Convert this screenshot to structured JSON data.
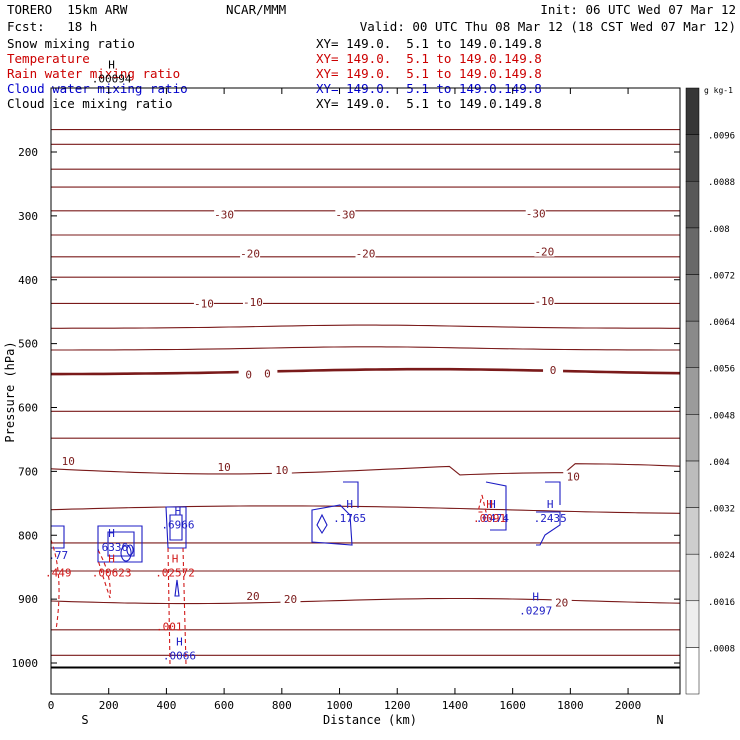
{
  "header": {
    "model": "TORERO  15km ARW",
    "center": "NCAR/MMM",
    "init": "Init: 06 UTC Wed 07 Mar 12",
    "fcst": "Fcst:   18 h",
    "valid": "Valid: 00 UTC Thu 08 Mar 12 (18 CST Wed 07 Mar 12)"
  },
  "fields": [
    {
      "label": "Snow mixing ratio",
      "xy": "XY= 149.0.  5.1 to 149.0.149.8",
      "color": "#000000"
    },
    {
      "label": "Temperature",
      "xy": "XY= 149.0.  5.1 to 149.0.149.8",
      "color": "#cc0000"
    },
    {
      "label": "Rain water mixing ratio",
      "xy": "XY= 149.0.  5.1 to 149.0.149.8",
      "color": "#cc0000"
    },
    {
      "label": "Cloud water mixing ratio",
      "xy": "XY= 149.0.  5.1 to 149.0.149.8",
      "color": "#0000cc"
    },
    {
      "label": "Cloud ice mixing ratio",
      "xy": "XY= 149.0.  5.1 to 149.0.149.8",
      "color": "#000000"
    }
  ],
  "chart_data": {
    "type": "cross-section",
    "xlabel": "Distance (km)",
    "ylabel": "Pressure (hPa)",
    "xlim": [
      0,
      2180
    ],
    "ylim": [
      1045,
      90
    ],
    "x_ticks": [
      0,
      200,
      400,
      600,
      800,
      1000,
      1200,
      1400,
      1600,
      1800,
      2000
    ],
    "x_tick_labels": [
      "0",
      "200",
      "400",
      "600",
      "800",
      "1000",
      "1200",
      "1400",
      "1600",
      "1800",
      "2000"
    ],
    "y_ticks": [
      200,
      300,
      400,
      500,
      600,
      700,
      800,
      900,
      1000
    ],
    "y_tick_labels": [
      "200",
      "300",
      "400",
      "500",
      "600",
      "700",
      "800",
      "900",
      "1000"
    ],
    "endpoints": {
      "left": "S",
      "right": "N"
    },
    "surface_pressure_hPa": 1007,
    "temperature_isotherms_C": [
      -30,
      -20,
      -10,
      0,
      10,
      20
    ],
    "temperature_labels": [
      {
        "text": "-30",
        "x": 600,
        "p": 298
      },
      {
        "text": "-30",
        "x": 1020,
        "p": 298
      },
      {
        "text": "-30",
        "x": 1680,
        "p": 296
      },
      {
        "text": "-20",
        "x": 690,
        "p": 359
      },
      {
        "text": "-20",
        "x": 1090,
        "p": 359
      },
      {
        "text": "-20",
        "x": 1710,
        "p": 356
      },
      {
        "text": "-10",
        "x": 530,
        "p": 437
      },
      {
        "text": "-10",
        "x": 700,
        "p": 435
      },
      {
        "text": "-10",
        "x": 1710,
        "p": 433
      },
      {
        "text": "0",
        "x": 685,
        "p": 548
      },
      {
        "text": "0",
        "x": 750,
        "p": 547
      },
      {
        "text": "0",
        "x": 1740,
        "p": 541
      },
      {
        "text": "10",
        "x": 60,
        "p": 684
      },
      {
        "text": "10",
        "x": 600,
        "p": 693
      },
      {
        "text": "10",
        "x": 800,
        "p": 698
      },
      {
        "text": "10",
        "x": 1810,
        "p": 708
      },
      {
        "text": "20",
        "x": 700,
        "p": 895
      },
      {
        "text": "20",
        "x": 830,
        "p": 900
      },
      {
        "text": "20",
        "x": 1770,
        "p": 905
      }
    ],
    "maxima_labels": [
      {
        "field": "Cloud ice",
        "mark": "H",
        "value": ".00094",
        "x": 210,
        "p": 82
      },
      {
        "field": "Cloud water",
        "mark": "H",
        "value": ".6336",
        "x": 210,
        "p": 815
      },
      {
        "field": "Cloud water",
        "mark": "H",
        "value": ".6966",
        "x": 440,
        "p": 780
      },
      {
        "field": "Cloud water",
        "mark": "H",
        "value": ".1765",
        "x": 1035,
        "p": 770
      },
      {
        "field": "Cloud water",
        "mark": "H",
        "value": ".0474",
        "x": 1530,
        "p": 770
      },
      {
        "field": "Cloud water",
        "mark": "H",
        "value": ".2435",
        "x": 1730,
        "p": 770
      },
      {
        "field": "Cloud water",
        "mark": "H",
        "value": ".0297",
        "x": 1680,
        "p": 915
      },
      {
        "field": "Cloud water",
        "mark": "H",
        "value": ".0066",
        "x": 445,
        "p": 985
      },
      {
        "field": "Cloud water",
        "mark": "",
        "value": ".77",
        "x": 25,
        "p": 828
      },
      {
        "field": "Rain water",
        "mark": "H",
        "value": ".00623",
        "x": 210,
        "p": 855
      },
      {
        "field": "Rain water",
        "mark": "H",
        "value": ".02572",
        "x": 430,
        "p": 855
      },
      {
        "field": "Rain water",
        "mark": "H",
        "value": ".0091",
        "x": 1520,
        "p": 770
      },
      {
        "field": "Rain water",
        "mark": "",
        "value": ".001",
        "x": 410,
        "p": 940
      },
      {
        "field": "Rain water",
        "mark": "",
        "value": ".449",
        "x": 25,
        "p": 855
      }
    ],
    "colorbar": {
      "title": "g kg-1",
      "levels": [
        ".0008",
        ".0016",
        ".0024",
        ".0032",
        ".004",
        ".0048",
        ".0056",
        ".0064",
        ".0072",
        ".008",
        ".0088",
        ".0096"
      ]
    }
  },
  "colors": {
    "temperature": "#7a1a1a",
    "rain": "#d11a1a",
    "cloud_water": "#1c1cc4",
    "text": "#000000"
  }
}
